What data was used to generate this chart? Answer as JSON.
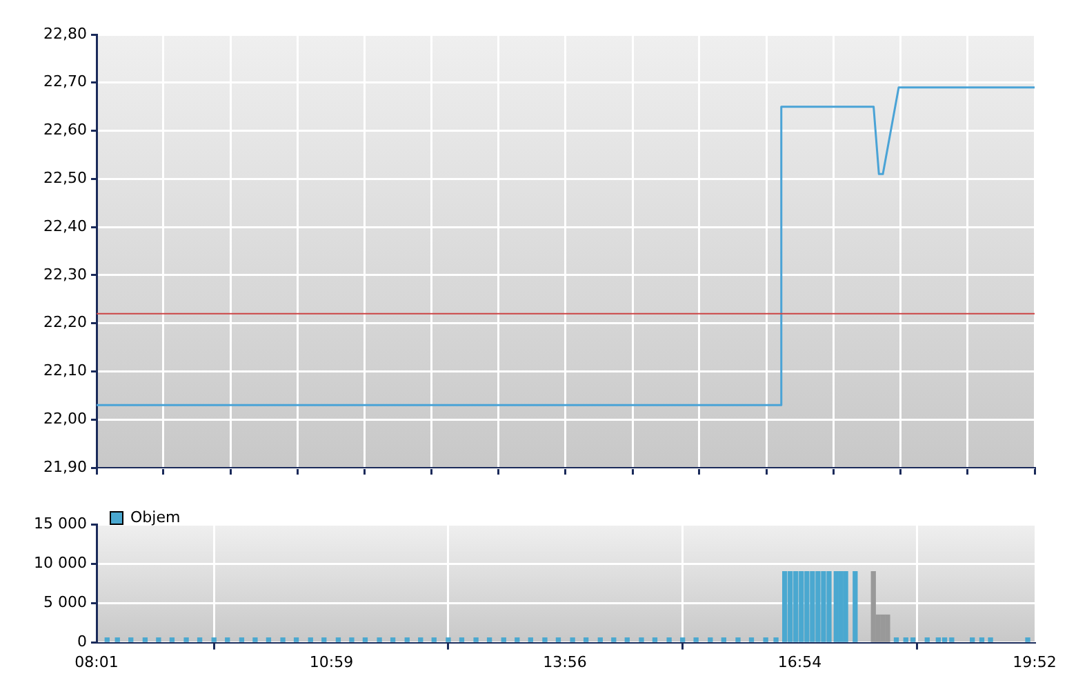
{
  "chart_data": [
    {
      "type": "line",
      "x": [
        8.0167,
        16.667,
        16.667,
        17.833,
        17.9,
        17.95,
        18.15,
        19.867
      ],
      "series": [
        {
          "color": "#4aa3d6",
          "values": [
            22.03,
            22.03,
            22.65,
            22.65,
            22.51,
            22.51,
            22.69,
            22.69
          ]
        }
      ],
      "xlim": [
        8.0167,
        19.867
      ],
      "xticks": [
        {
          "value": 8.0167,
          "label": null
        },
        {
          "value": 8.86,
          "label": null
        },
        {
          "value": 9.71,
          "label": null
        },
        {
          "value": 10.56,
          "label": null
        },
        {
          "value": 11.4,
          "label": null
        },
        {
          "value": 12.25,
          "label": null
        },
        {
          "value": 13.09,
          "label": null
        },
        {
          "value": 13.94,
          "label": null
        },
        {
          "value": 14.79,
          "label": null
        },
        {
          "value": 15.63,
          "label": null
        },
        {
          "value": 16.48,
          "label": null
        },
        {
          "value": 17.33,
          "label": null
        },
        {
          "value": 18.17,
          "label": null
        },
        {
          "value": 19.02,
          "label": null
        },
        {
          "value": 19.867,
          "label": null
        }
      ],
      "ylim": [
        21.9,
        22.8
      ],
      "yticks": [
        {
          "value": 21.9,
          "label": "21,90"
        },
        {
          "value": 22.0,
          "label": "22,00"
        },
        {
          "value": 22.1,
          "label": "22,10"
        },
        {
          "value": 22.2,
          "label": "22,20"
        },
        {
          "value": 22.3,
          "label": "22,30"
        },
        {
          "value": 22.4,
          "label": "22,40"
        },
        {
          "value": 22.5,
          "label": "22,50"
        },
        {
          "value": 22.6,
          "label": "22,60"
        },
        {
          "value": 22.7,
          "label": "22,70"
        },
        {
          "value": 22.8,
          "label": "22,80"
        }
      ],
      "ref_lines": [
        {
          "axis": "y",
          "value": 22.22,
          "color": "#cc4444"
        }
      ],
      "grid": true,
      "legend": false,
      "marker": "none",
      "line_style": "solid",
      "tick_labels": "y"
    },
    {
      "type": "bar",
      "x": [
        8.15,
        8.28,
        8.45,
        8.63,
        8.8,
        8.97,
        9.15,
        9.32,
        9.5,
        9.67,
        9.85,
        10.02,
        10.19,
        10.37,
        10.54,
        10.72,
        10.89,
        11.07,
        11.24,
        11.41,
        11.59,
        11.76,
        11.94,
        12.11,
        12.28,
        12.46,
        12.63,
        12.81,
        12.98,
        13.16,
        13.33,
        13.5,
        13.68,
        13.85,
        14.03,
        14.2,
        14.38,
        14.55,
        14.72,
        14.9,
        15.07,
        15.25,
        15.42,
        15.59,
        15.77,
        15.94,
        16.12,
        16.29,
        16.47,
        16.6,
        16.71,
        16.78,
        16.85,
        16.92,
        16.99,
        17.06,
        17.13,
        17.2,
        17.27,
        17.36,
        17.42,
        17.48,
        17.6,
        17.83,
        17.89,
        17.95,
        18.01,
        18.12,
        18.24,
        18.33,
        18.51,
        18.65,
        18.73,
        18.82,
        19.08,
        19.2,
        19.31,
        19.78
      ],
      "series": [
        {
          "name": "Objem",
          "color": "#4aa8d0",
          "values": [
            600,
            600,
            600,
            600,
            600,
            600,
            600,
            600,
            600,
            600,
            600,
            600,
            600,
            600,
            600,
            600,
            600,
            600,
            600,
            600,
            600,
            600,
            600,
            600,
            600,
            600,
            600,
            600,
            600,
            600,
            600,
            600,
            600,
            600,
            600,
            600,
            600,
            600,
            600,
            600,
            600,
            600,
            600,
            600,
            600,
            600,
            600,
            600,
            600,
            600,
            9000,
            9000,
            9000,
            9000,
            9000,
            9000,
            9000,
            9000,
            9000,
            9000,
            9000,
            9000,
            9000,
            9000,
            3500,
            3500,
            3500,
            600,
            600,
            600,
            600,
            600,
            600,
            600,
            600,
            600,
            600,
            600
          ],
          "colors": [
            "#4aa8d0",
            "#4aa8d0",
            "#4aa8d0",
            "#4aa8d0",
            "#4aa8d0",
            "#4aa8d0",
            "#4aa8d0",
            "#4aa8d0",
            "#4aa8d0",
            "#4aa8d0",
            "#4aa8d0",
            "#4aa8d0",
            "#4aa8d0",
            "#4aa8d0",
            "#4aa8d0",
            "#4aa8d0",
            "#4aa8d0",
            "#4aa8d0",
            "#4aa8d0",
            "#4aa8d0",
            "#4aa8d0",
            "#4aa8d0",
            "#4aa8d0",
            "#4aa8d0",
            "#4aa8d0",
            "#4aa8d0",
            "#4aa8d0",
            "#4aa8d0",
            "#4aa8d0",
            "#4aa8d0",
            "#4aa8d0",
            "#4aa8d0",
            "#4aa8d0",
            "#4aa8d0",
            "#4aa8d0",
            "#4aa8d0",
            "#4aa8d0",
            "#4aa8d0",
            "#4aa8d0",
            "#4aa8d0",
            "#4aa8d0",
            "#4aa8d0",
            "#4aa8d0",
            "#4aa8d0",
            "#4aa8d0",
            "#4aa8d0",
            "#4aa8d0",
            "#4aa8d0",
            "#4aa8d0",
            "#4aa8d0",
            "#4aa8d0",
            "#4aa8d0",
            "#4aa8d0",
            "#4aa8d0",
            "#4aa8d0",
            "#4aa8d0",
            "#4aa8d0",
            "#4aa8d0",
            "#4aa8d0",
            "#4aa8d0",
            "#4aa8d0",
            "#4aa8d0",
            "#4aa8d0",
            "#999999",
            "#999999",
            "#999999",
            "#999999",
            "#4aa8d0",
            "#4aa8d0",
            "#4aa8d0",
            "#4aa8d0",
            "#4aa8d0",
            "#4aa8d0",
            "#4aa8d0",
            "#4aa8d0",
            "#4aa8d0",
            "#4aa8d0",
            "#4aa8d0"
          ]
        }
      ],
      "xlim": [
        8.0167,
        19.867
      ],
      "xticks": [
        {
          "value": 8.0167,
          "label": "08:01"
        },
        {
          "value": 10.983,
          "label": "10:59"
        },
        {
          "value": 13.933,
          "label": "13:56"
        },
        {
          "value": 16.9,
          "label": "16:54"
        },
        {
          "value": 19.867,
          "label": "19:52"
        }
      ],
      "ylim": [
        0,
        15000
      ],
      "yticks": [
        0,
        {
          "value": 5000,
          "label": "5 000"
        },
        {
          "value": 10000,
          "label": "10 000"
        },
        {
          "value": 15000,
          "label": "15 000"
        }
      ],
      "grid": true,
      "legend": "top left"
    }
  ]
}
